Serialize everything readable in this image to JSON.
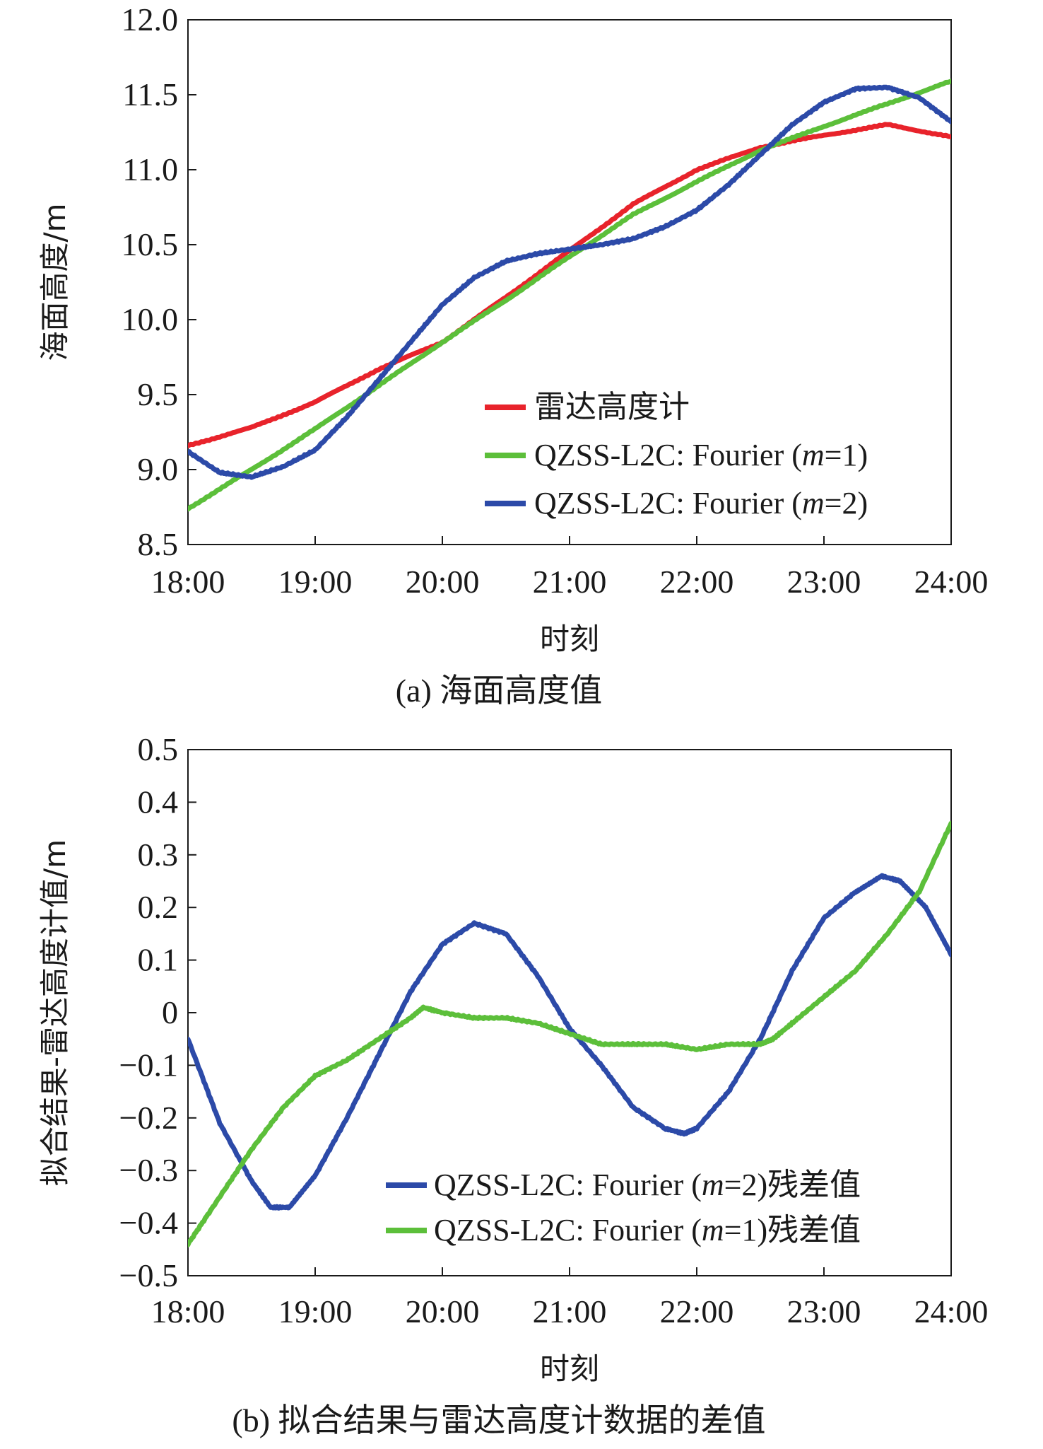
{
  "chart_data": [
    {
      "type": "line",
      "caption": "(a) 海面高度值",
      "xlabel": "时刻",
      "ylabel": "海面高度/m",
      "x_ticks": [
        "18:00",
        "19:00",
        "20:00",
        "21:00",
        "22:00",
        "23:00",
        "24:00"
      ],
      "y_ticks": [
        "8.5",
        "9.0",
        "9.5",
        "10.0",
        "10.5",
        "11.0",
        "11.5",
        "12.0"
      ],
      "xlim": [
        18,
        24
      ],
      "ylim": [
        8.5,
        12.0
      ],
      "legend_position": "bottom-right",
      "series": [
        {
          "name": "雷达高度计",
          "legend_parts": [
            "雷达高度计"
          ],
          "color": "#e8232b",
          "x": [
            18.0,
            18.5,
            19.0,
            19.5,
            20.0,
            20.5,
            21.0,
            21.5,
            22.0,
            22.5,
            23.0,
            23.5,
            24.0
          ],
          "y": [
            9.16,
            9.28,
            9.45,
            9.67,
            9.85,
            10.15,
            10.46,
            10.77,
            11.0,
            11.15,
            11.23,
            11.3,
            11.22
          ]
        },
        {
          "name": "QZSS-L2C: Fourier (m=1)",
          "legend_parts": [
            "QZSS-L2C: Fourier (",
            "m",
            "=1)"
          ],
          "color": "#5cbf3a",
          "x": [
            18.0,
            18.5,
            19.0,
            19.5,
            20.0,
            20.5,
            21.0,
            21.5,
            22.0,
            22.5,
            23.0,
            23.5,
            24.0
          ],
          "y": [
            8.74,
            9.0,
            9.27,
            9.56,
            9.85,
            10.13,
            10.42,
            10.7,
            10.92,
            11.13,
            11.29,
            11.44,
            11.59
          ]
        },
        {
          "name": "QZSS-L2C: Fourier (m=2)",
          "legend_parts": [
            "QZSS-L2C: Fourier (",
            "m",
            "=2)"
          ],
          "color": "#2c4aa8",
          "x": [
            18.0,
            18.25,
            18.5,
            18.75,
            19.0,
            19.25,
            19.5,
            19.75,
            20.0,
            20.25,
            20.5,
            20.75,
            21.0,
            21.25,
            21.5,
            21.75,
            22.0,
            22.25,
            22.5,
            22.75,
            23.0,
            23.25,
            23.5,
            23.75,
            24.0
          ],
          "y": [
            9.12,
            8.98,
            8.95,
            9.02,
            9.13,
            9.35,
            9.6,
            9.85,
            10.1,
            10.28,
            10.39,
            10.44,
            10.47,
            10.5,
            10.54,
            10.62,
            10.73,
            10.9,
            11.1,
            11.3,
            11.45,
            11.54,
            11.55,
            11.48,
            11.32
          ]
        }
      ]
    },
    {
      "type": "line",
      "caption": "(b) 拟合结果与雷达高度计数据的差值",
      "xlabel": "时刻",
      "ylabel": "拟合结果-雷达高度计值/m",
      "x_ticks": [
        "18:00",
        "19:00",
        "20:00",
        "21:00",
        "22:00",
        "23:00",
        "24:00"
      ],
      "y_ticks": [
        "−0.5",
        "−0.4",
        "−0.3",
        "−0.2",
        "−0.1",
        "0",
        "0.1",
        "0.2",
        "0.3",
        "0.4",
        "0.5"
      ],
      "xlim": [
        18,
        24
      ],
      "ylim": [
        -0.5,
        0.5
      ],
      "legend_position": "bottom-right",
      "series": [
        {
          "name": "QZSS-L2C: Fourier (m=2)残差值",
          "legend_parts": [
            "QZSS-L2C: Fourier (",
            "m",
            "=2)残差值"
          ],
          "color": "#2c4aa8",
          "x": [
            18.0,
            18.25,
            18.5,
            18.65,
            18.8,
            19.0,
            19.25,
            19.5,
            19.75,
            20.0,
            20.25,
            20.5,
            20.75,
            21.0,
            21.25,
            21.5,
            21.75,
            21.9,
            22.0,
            22.25,
            22.5,
            22.75,
            23.0,
            23.25,
            23.45,
            23.6,
            23.8,
            24.0
          ],
          "y": [
            -0.05,
            -0.21,
            -0.32,
            -0.37,
            -0.37,
            -0.31,
            -0.2,
            -0.08,
            0.04,
            0.13,
            0.17,
            0.15,
            0.07,
            -0.03,
            -0.1,
            -0.18,
            -0.22,
            -0.23,
            -0.22,
            -0.15,
            -0.05,
            0.08,
            0.18,
            0.23,
            0.26,
            0.25,
            0.2,
            0.11
          ]
        },
        {
          "name": "QZSS-L2C: Fourier (m=1)残差值",
          "legend_parts": [
            "QZSS-L2C: Fourier (",
            "m",
            "=1)残差值"
          ],
          "color": "#5cbf3a",
          "x": [
            18.0,
            18.25,
            18.5,
            18.75,
            19.0,
            19.25,
            19.5,
            19.75,
            19.85,
            20.0,
            20.25,
            20.5,
            20.75,
            21.0,
            21.25,
            21.5,
            21.75,
            22.0,
            22.25,
            22.5,
            22.6,
            22.75,
            23.0,
            23.25,
            23.5,
            23.75,
            24.0
          ],
          "y": [
            -0.44,
            -0.35,
            -0.26,
            -0.18,
            -0.12,
            -0.09,
            -0.05,
            -0.01,
            0.01,
            0.0,
            -0.01,
            -0.01,
            -0.02,
            -0.04,
            -0.06,
            -0.06,
            -0.06,
            -0.07,
            -0.06,
            -0.06,
            -0.05,
            -0.02,
            0.03,
            0.08,
            0.15,
            0.23,
            0.36
          ]
        }
      ]
    }
  ]
}
